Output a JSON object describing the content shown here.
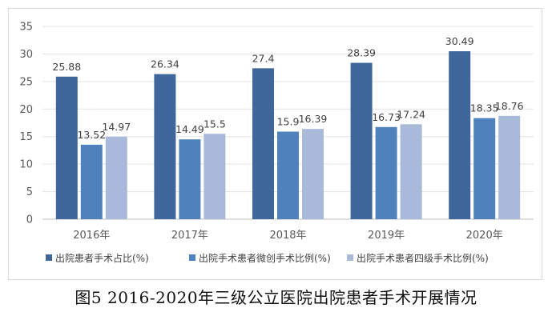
{
  "chart_data": {
    "type": "bar",
    "title": "",
    "xlabel": "",
    "ylabel": "",
    "categories": [
      "2016年",
      "2017年",
      "2018年",
      "2019年",
      "2020年"
    ],
    "ylim": [
      0,
      35
    ],
    "yticks": [
      0,
      5,
      10,
      15,
      20,
      25,
      30,
      35
    ],
    "grid": true,
    "legend_position": "bottom",
    "series": [
      {
        "name": "出院患者手术占比(%)",
        "color": "#3f679b",
        "values": [
          25.88,
          26.34,
          27.4,
          28.39,
          30.49
        ],
        "labels": [
          "25.88",
          "26.34",
          "27.4",
          "28.39",
          "30.49"
        ]
      },
      {
        "name": "出院手术患者微创手术比例(%)",
        "color": "#4f81bd",
        "values": [
          13.52,
          14.49,
          15.9,
          16.73,
          18.35
        ],
        "labels": [
          "13.52",
          "14.49",
          "15.9",
          "16.73",
          "18.35"
        ]
      },
      {
        "name": "出院手术患者四级手术比例(%)",
        "color": "#a9b9d9",
        "values": [
          14.97,
          15.5,
          16.39,
          17.24,
          18.76
        ],
        "labels": [
          "14.97",
          "15.5",
          "16.39",
          "17.24",
          "18.76"
        ]
      }
    ]
  },
  "caption": "图5 2016-2020年三级公立医院出院患者手术开展情况"
}
